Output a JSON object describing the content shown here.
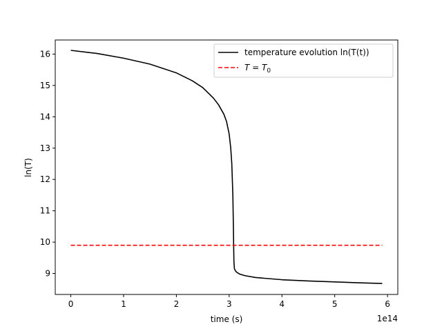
{
  "chart_data": {
    "type": "line",
    "xlabel": "time (s)",
    "ylabel": "ln(T)",
    "x_offset_label": "1e14",
    "xlim": [
      -0.295,
      6.195
    ],
    "ylim": [
      8.33,
      16.45
    ],
    "x_ticks": [
      0,
      1,
      2,
      3,
      4,
      5,
      6
    ],
    "y_ticks": [
      9,
      10,
      11,
      12,
      13,
      14,
      15,
      16
    ],
    "grid": false,
    "legend_position": "top-right",
    "series": [
      {
        "name": "temperature evolution ln(T(t))",
        "color": "#000000",
        "style": "solid",
        "x": [
          0,
          0.5,
          1.0,
          1.5,
          2.0,
          2.3,
          2.5,
          2.7,
          2.8,
          2.9,
          2.95,
          3.0,
          3.03,
          3.05,
          3.07,
          3.08,
          3.085,
          3.09,
          3.095,
          3.1,
          3.12,
          3.15,
          3.2,
          3.3,
          3.5,
          4.0,
          4.5,
          5.0,
          5.5,
          5.9
        ],
        "values": [
          16.12,
          16.02,
          15.87,
          15.68,
          15.4,
          15.15,
          14.93,
          14.6,
          14.38,
          14.08,
          13.85,
          13.45,
          13.0,
          12.5,
          11.5,
          10.5,
          9.9,
          9.4,
          9.25,
          9.15,
          9.08,
          9.03,
          8.98,
          8.93,
          8.87,
          8.8,
          8.76,
          8.73,
          8.7,
          8.68
        ]
      },
      {
        "name": "T = T_0",
        "color": "#ff0000",
        "style": "dashed",
        "x": [
          0,
          5.9
        ],
        "values": [
          9.9,
          9.9
        ]
      }
    ]
  }
}
